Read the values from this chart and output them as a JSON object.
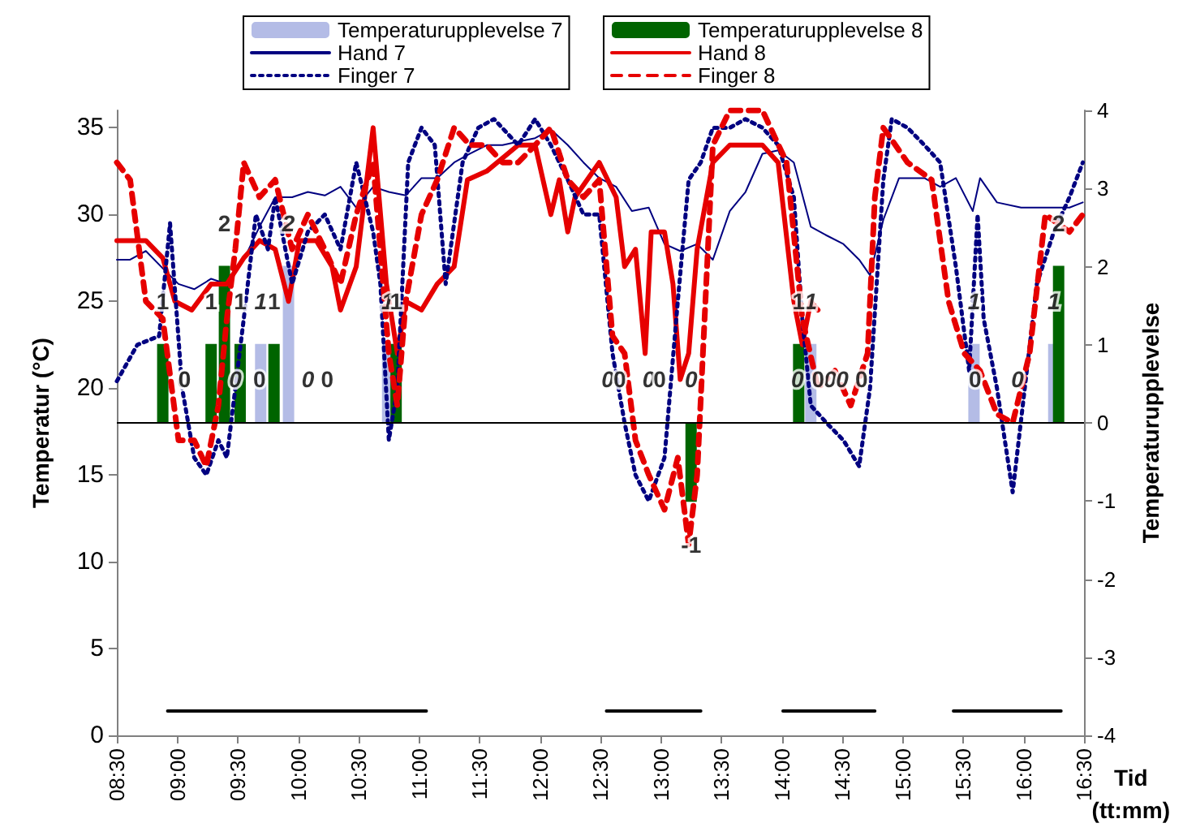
{
  "chart_data": {
    "type": "line",
    "xlabel": "Tid\n(tt:mm)",
    "ylabel": "Temperatur (°C)",
    "y2label": "Temperaturupplevelse",
    "xlim": [
      8.5,
      16.5
    ],
    "xticks": [
      {
        "value": 8.5,
        "label": "08:30"
      },
      {
        "value": 9,
        "label": "09:00"
      },
      {
        "value": 9.5,
        "label": "09:30"
      },
      {
        "value": 10,
        "label": "10:00"
      },
      {
        "value": 10.5,
        "label": "10:30"
      },
      {
        "value": 11,
        "label": "11:00"
      },
      {
        "value": 11.5,
        "label": "11:30"
      },
      {
        "value": 12,
        "label": "12:00"
      },
      {
        "value": 12.5,
        "label": "12:30"
      },
      {
        "value": 13,
        "label": "13:00"
      },
      {
        "value": 13.5,
        "label": "13:30"
      },
      {
        "value": 14,
        "label": "14:00"
      },
      {
        "value": 14.5,
        "label": "14:30"
      },
      {
        "value": 15,
        "label": "15:00"
      },
      {
        "value": 15.5,
        "label": "15:30"
      },
      {
        "value": 16,
        "label": "16:00"
      },
      {
        "value": 16.5,
        "label": "16:30"
      }
    ],
    "ylim": [
      0,
      36
    ],
    "yticks": [
      0,
      5,
      10,
      15,
      20,
      25,
      30,
      35
    ],
    "y2lim": [
      -4,
      4
    ],
    "y2ticks": [
      -4,
      -3,
      -2,
      -1,
      0,
      1,
      2,
      3,
      4
    ],
    "grid": false,
    "legend": "top",
    "marker": "none",
    "ref_lines": [
      {
        "axis": "y2",
        "value": 0,
        "color": "#000000"
      }
    ],
    "series": [
      {
        "name": "Temperaturupplevelse 7",
        "type": "bar",
        "axis": "y2",
        "color": "#b4bce6",
        "x": [
          9.05,
          9.48,
          9.69,
          9.92,
          10.08,
          10.74,
          12.56,
          12.9,
          13.25,
          14.13,
          14.24,
          14.4,
          14.5,
          15.59,
          15.95,
          16.25
        ],
        "values": [
          0,
          0,
          1,
          2,
          0,
          1,
          0,
          0,
          0,
          0,
          1,
          0,
          0,
          1,
          0,
          1
        ],
        "value_labels": [
          "0",
          "0",
          "1",
          "2",
          "0",
          "1",
          "0",
          "0",
          "0",
          "0",
          "1",
          "0",
          "0",
          "1",
          "0",
          "1"
        ]
      },
      {
        "name": "Temperaturupplevelse 8",
        "type": "bar",
        "axis": "y2",
        "color": "#006400",
        "x": [
          8.88,
          9.06,
          9.28,
          9.39,
          9.52,
          9.68,
          9.8,
          10.24,
          10.81,
          12.66,
          12.99,
          13.25,
          14.14,
          14.3,
          14.66,
          15.6,
          16.29
        ],
        "values": [
          1,
          0,
          1,
          2,
          1,
          0,
          1,
          0,
          1,
          0,
          0,
          -1,
          1,
          0,
          0,
          0,
          2
        ],
        "value_labels": [
          "1",
          "0",
          "1",
          "2",
          "1",
          "0",
          "1",
          "0",
          "1",
          "0",
          "0",
          "-1",
          "1",
          "0",
          "0",
          "0",
          "2"
        ]
      },
      {
        "name": "Hand 7",
        "color": "#000080",
        "line_style": "solid",
        "x": [
          8.5,
          8.61,
          8.74,
          8.88,
          9.01,
          9.14,
          9.28,
          9.41,
          9.55,
          9.68,
          9.81,
          9.95,
          10.08,
          10.22,
          10.35,
          10.48,
          10.62,
          10.75,
          10.89,
          11.02,
          11.15,
          11.29,
          11.42,
          11.56,
          11.69,
          11.82,
          11.96,
          12.09,
          12.23,
          12.36,
          12.49,
          12.63,
          12.76,
          12.9,
          13.03,
          13.16,
          13.3,
          13.43,
          13.57,
          13.7,
          13.84,
          13.97,
          14.1,
          14.24,
          14.37,
          14.51,
          14.64,
          14.73,
          14.84,
          14.97,
          15.18,
          15.31,
          15.44,
          15.58,
          15.64,
          15.78,
          15.98,
          16.18,
          16.38,
          16.49
        ],
        "values": [
          27.4,
          27.4,
          27.9,
          26.9,
          26,
          25.7,
          26.3,
          26,
          27.4,
          29.3,
          31,
          31,
          31.3,
          31.1,
          31.6,
          30.4,
          31.6,
          31.3,
          31.1,
          32.1,
          32.1,
          33,
          33.5,
          34,
          34,
          34.2,
          34.4,
          34.9,
          34,
          33,
          32.1,
          31.6,
          30.2,
          30.4,
          28.3,
          27.9,
          28.3,
          27.4,
          30.2,
          31.3,
          33.5,
          33.7,
          33,
          29.3,
          28.8,
          28.3,
          27.4,
          26.5,
          29.7,
          32.1,
          32.1,
          31.6,
          32.1,
          30.2,
          32.1,
          30.7,
          30.4,
          30.4,
          30.4,
          30.7
        ]
      },
      {
        "name": "Hand 8",
        "color": "#e60000",
        "line_style": "solid",
        "x": [
          8.5,
          8.74,
          8.88,
          8.98,
          9.12,
          9.28,
          9.41,
          9.55,
          9.68,
          9.81,
          9.92,
          10.01,
          10.15,
          10.28,
          10.35,
          10.48,
          10.62,
          10.73,
          10.82,
          10.89,
          11.02,
          11.15,
          11.29,
          11.4,
          11.56,
          11.82,
          11.96,
          12.09,
          12.16,
          12.23,
          12.29,
          12.49,
          12.63,
          12.7,
          12.79,
          12.87,
          12.92,
          13.03,
          13.1,
          13.16,
          13.23,
          13.3,
          13.43,
          13.57,
          13.84,
          13.97,
          14.1,
          14.17,
          14.24,
          14.3
        ],
        "values": [
          28.5,
          28.5,
          27.5,
          25,
          24.5,
          26,
          26,
          27.5,
          28.5,
          28,
          25,
          28.5,
          28.5,
          27,
          24.5,
          27,
          35,
          26,
          22,
          25,
          24.5,
          26,
          27,
          32,
          32.5,
          34,
          34,
          30,
          32,
          29,
          31,
          33,
          31,
          27,
          28,
          22,
          29,
          29,
          26,
          20.5,
          22,
          28,
          33,
          34,
          34,
          33,
          25,
          22.5,
          25,
          24.5
        ]
      },
      {
        "name": "Finger 7",
        "color": "#000080",
        "line_style": "dotted",
        "x": [
          8.5,
          8.67,
          8.85,
          8.94,
          9.04,
          9.14,
          9.24,
          9.34,
          9.41,
          9.55,
          9.65,
          9.75,
          9.81,
          9.95,
          10.08,
          10.22,
          10.35,
          10.48,
          10.62,
          10.68,
          10.75,
          10.82,
          10.91,
          11.02,
          11.13,
          11.22,
          11.36,
          11.49,
          11.62,
          11.82,
          11.96,
          12.09,
          12.23,
          12.36,
          12.49,
          12.6,
          12.7,
          12.79,
          12.9,
          13.03,
          13.14,
          13.23,
          13.33,
          13.43,
          13.57,
          13.7,
          13.84,
          13.97,
          14.1,
          14.17,
          14.24,
          14.37,
          14.51,
          14.64,
          14.73,
          14.84,
          14.91,
          15.04,
          15.18,
          15.31,
          15.44,
          15.55,
          15.62,
          15.67,
          15.78,
          15.91,
          16.01,
          16.11,
          16.25,
          16.38,
          16.49
        ],
        "values": [
          20.4,
          22.5,
          23,
          29.5,
          20,
          16,
          15,
          17,
          16,
          24,
          30,
          28,
          31,
          26,
          29,
          30,
          28,
          33,
          29,
          26,
          17,
          20,
          33,
          35,
          34,
          26,
          33,
          35,
          35.5,
          34,
          35.5,
          34,
          32,
          30,
          30,
          22,
          18,
          15,
          13.5,
          16,
          25,
          32,
          33,
          35,
          35,
          35.5,
          35,
          34,
          31,
          24,
          19,
          18,
          17,
          15.5,
          20,
          32,
          35.5,
          35,
          34,
          33,
          27,
          21,
          30,
          24,
          20,
          14,
          20,
          26,
          29,
          31,
          33
        ]
      },
      {
        "name": "Finger 8",
        "color": "#e60000",
        "line_style": "dashed",
        "x": [
          8.5,
          8.61,
          8.74,
          8.88,
          9.01,
          9.14,
          9.24,
          9.34,
          9.41,
          9.48,
          9.55,
          9.68,
          9.81,
          9.95,
          10.08,
          10.22,
          10.35,
          10.48,
          10.62,
          10.75,
          10.82,
          10.89,
          11.02,
          11.15,
          11.29,
          11.42,
          11.56,
          11.69,
          11.82,
          11.96,
          12.09,
          12.23,
          12.36,
          12.49,
          12.6,
          12.7,
          12.79,
          12.9,
          13.03,
          13.14,
          13.23,
          13.3,
          13.43,
          13.57,
          13.84,
          14.04,
          14.17,
          14.3,
          14.44,
          14.57,
          14.71,
          14.77,
          14.84,
          15.04,
          15.24,
          15.38,
          15.51,
          15.64,
          15.78,
          15.91,
          16.05,
          16.18,
          16.38,
          16.49
        ],
        "values": [
          33,
          32,
          25,
          24,
          17,
          17,
          15.5,
          19,
          24,
          28,
          33,
          31,
          32,
          28,
          30,
          28,
          26,
          30,
          33,
          22,
          19,
          25,
          30,
          32,
          35,
          34,
          34,
          33,
          33,
          34,
          35,
          32,
          31,
          32,
          23,
          22,
          17,
          15,
          13,
          16,
          11,
          15,
          34,
          36,
          36,
          33,
          24,
          20,
          21,
          19,
          22,
          31,
          35,
          33,
          32,
          25,
          22,
          21,
          18.5,
          18,
          22,
          30,
          29,
          30
        ]
      },
      {
        "color": "#000000",
        "line_style": "solid",
        "x": [
          8.92,
          11.06,
          11.5,
          12.55,
          13.33,
          13.7,
          14.01,
          14.77,
          15.1,
          15.42,
          16.31
        ],
        "values": [
          1.4,
          1.4,
          null,
          1.4,
          1.4,
          null,
          1.4,
          1.4,
          null,
          1.4,
          1.4
        ]
      }
    ]
  }
}
